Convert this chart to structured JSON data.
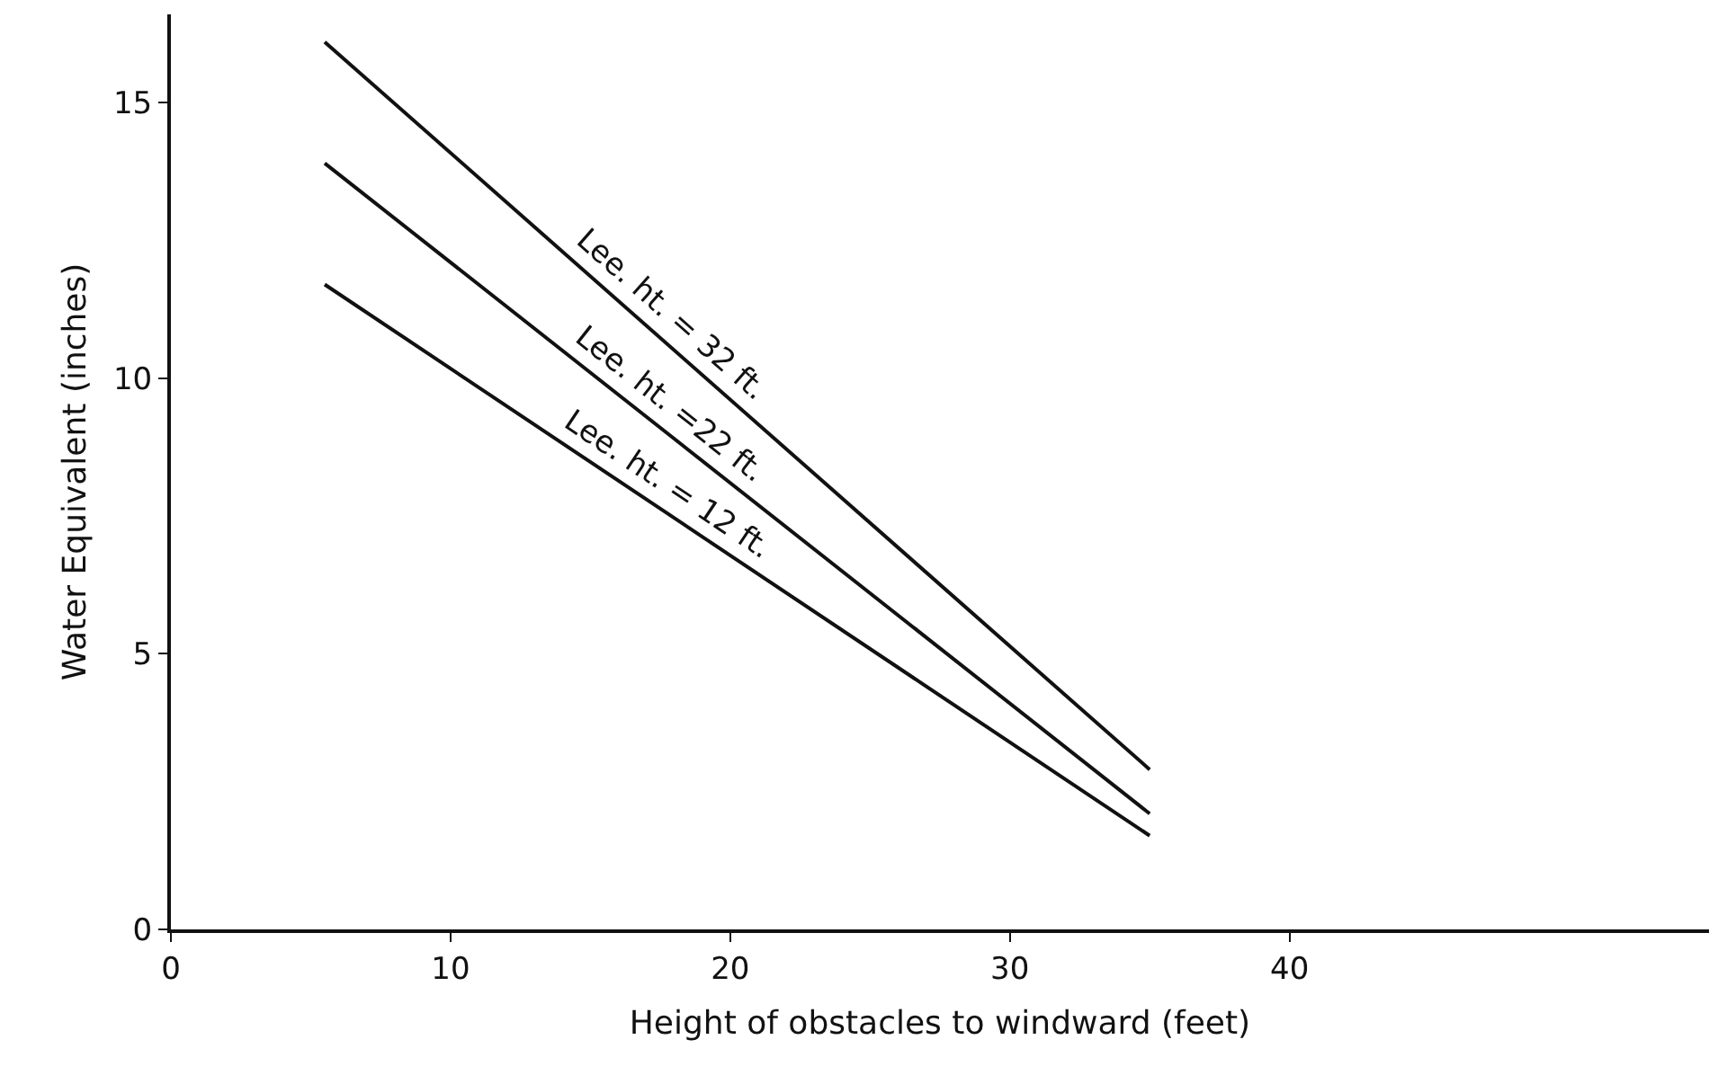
{
  "chart_data": {
    "type": "line",
    "xlabel": "Height of obstacles to windward (feet)",
    "ylabel": "Water Equivalent (inches)",
    "xlim": [
      0,
      55
    ],
    "ylim": [
      0,
      16.6
    ],
    "xticks": [
      0,
      10,
      20,
      30,
      40
    ],
    "yticks": [
      0,
      5,
      10,
      15
    ],
    "x": [
      5.5,
      35
    ],
    "grid": false,
    "legend": false,
    "marker": "none",
    "line_style": "solid",
    "series": [
      {
        "name": "Lee. ht. = 32 ft.",
        "color": "#111111",
        "values": [
          16.1,
          2.9
        ]
      },
      {
        "name": "Lee. ht. =22 ft.",
        "color": "#111111",
        "values": [
          13.9,
          2.1
        ]
      },
      {
        "name": "Lee. ht. = 12 ft.",
        "color": "#111111",
        "values": [
          11.7,
          1.7
        ]
      }
    ]
  }
}
